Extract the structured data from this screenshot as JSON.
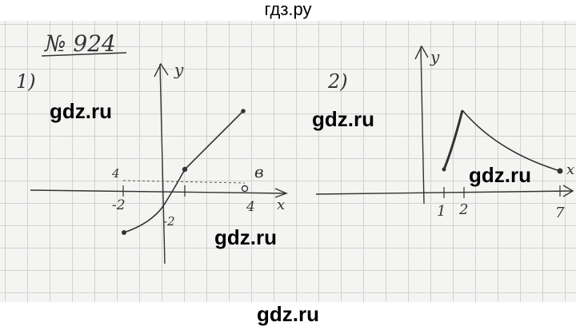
{
  "header": {
    "site": "гдз.ру"
  },
  "problem": {
    "number": "№ 924"
  },
  "parts": [
    {
      "label": "1)",
      "axis_x": "x",
      "axis_y": "y",
      "ticks": [
        "-2",
        "-2",
        "4"
      ],
      "point_labels": [
        "4",
        "в"
      ]
    },
    {
      "label": "2)",
      "axis_x": "x",
      "axis_y": "y",
      "ticks": [
        "1",
        "2",
        "7"
      ]
    }
  ],
  "watermarks": [
    "gdz.ru",
    "gdz.ru",
    "gdz.ru",
    "gdz.ru"
  ],
  "footer": {
    "site": "gdz.ru"
  },
  "colors": {
    "ink": "#333333",
    "grid": "#d2d2d2",
    "paper": "#f4f4f2"
  }
}
